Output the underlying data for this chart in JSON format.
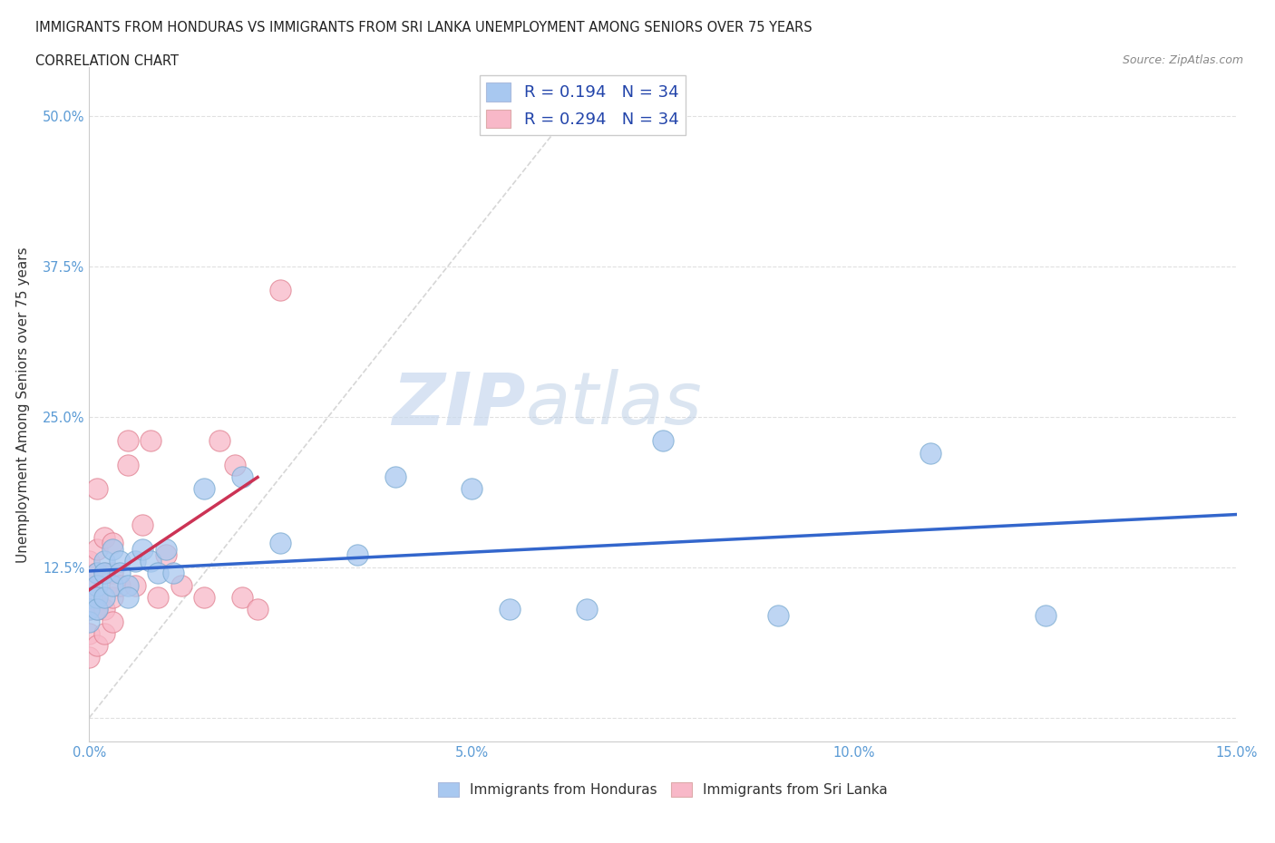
{
  "title_line1": "IMMIGRANTS FROM HONDURAS VS IMMIGRANTS FROM SRI LANKA UNEMPLOYMENT AMONG SENIORS OVER 75 YEARS",
  "title_line2": "CORRELATION CHART",
  "source_text": "Source: ZipAtlas.com",
  "ylabel": "Unemployment Among Seniors over 75 years",
  "xlim": [
    0.0,
    0.15
  ],
  "ylim": [
    -0.02,
    0.54
  ],
  "xticks": [
    0.0,
    0.025,
    0.05,
    0.075,
    0.1,
    0.125,
    0.15
  ],
  "xticklabels": [
    "0.0%",
    "",
    "5.0%",
    "",
    "10.0%",
    "",
    "15.0%"
  ],
  "yticks": [
    0.0,
    0.125,
    0.25,
    0.375,
    0.5
  ],
  "yticklabels": [
    "",
    "12.5%",
    "25.0%",
    "37.5%",
    "50.0%"
  ],
  "watermark": "ZIPatlas",
  "scatter_blue_face": "#a8c8f0",
  "scatter_blue_edge": "#7aaad0",
  "scatter_pink_face": "#f8b8c8",
  "scatter_pink_edge": "#e08090",
  "regression_blue": "#3366cc",
  "regression_pink": "#cc3355",
  "dashed_line_color": "#cccccc",
  "grid_color": "#dddddd",
  "tick_color": "#5b9bd5",
  "honduras_x": [
    0.0,
    0.0,
    0.0,
    0.001,
    0.001,
    0.001,
    0.001,
    0.002,
    0.002,
    0.002,
    0.003,
    0.003,
    0.004,
    0.004,
    0.005,
    0.005,
    0.006,
    0.007,
    0.008,
    0.009,
    0.01,
    0.011,
    0.015,
    0.02,
    0.025,
    0.035,
    0.04,
    0.05,
    0.055,
    0.065,
    0.075,
    0.09,
    0.11,
    0.125
  ],
  "honduras_y": [
    0.1,
    0.09,
    0.08,
    0.12,
    0.11,
    0.1,
    0.09,
    0.13,
    0.12,
    0.1,
    0.14,
    0.11,
    0.13,
    0.12,
    0.11,
    0.1,
    0.13,
    0.14,
    0.13,
    0.12,
    0.14,
    0.12,
    0.19,
    0.2,
    0.145,
    0.135,
    0.2,
    0.19,
    0.09,
    0.09,
    0.23,
    0.085,
    0.22,
    0.085
  ],
  "srilanka_x": [
    0.0,
    0.0,
    0.0,
    0.0,
    0.0,
    0.001,
    0.001,
    0.001,
    0.001,
    0.001,
    0.001,
    0.002,
    0.002,
    0.002,
    0.002,
    0.003,
    0.003,
    0.003,
    0.003,
    0.004,
    0.005,
    0.005,
    0.006,
    0.007,
    0.008,
    0.009,
    0.01,
    0.012,
    0.015,
    0.017,
    0.019,
    0.02,
    0.022,
    0.025
  ],
  "srilanka_y": [
    0.05,
    0.07,
    0.09,
    0.11,
    0.13,
    0.06,
    0.09,
    0.1,
    0.12,
    0.14,
    0.19,
    0.07,
    0.09,
    0.12,
    0.15,
    0.08,
    0.1,
    0.12,
    0.145,
    0.11,
    0.21,
    0.23,
    0.11,
    0.16,
    0.23,
    0.1,
    0.135,
    0.11,
    0.1,
    0.23,
    0.21,
    0.1,
    0.09,
    0.355
  ],
  "legend_blue_label": "R = 0.194   N = 34",
  "legend_pink_label": "R = 0.294   N = 34",
  "legend_blue_face": "#a8c8f0",
  "legend_pink_face": "#f8b8c8",
  "bottom_legend_blue": "Immigrants from Honduras",
  "bottom_legend_pink": "Immigrants from Sri Lanka"
}
